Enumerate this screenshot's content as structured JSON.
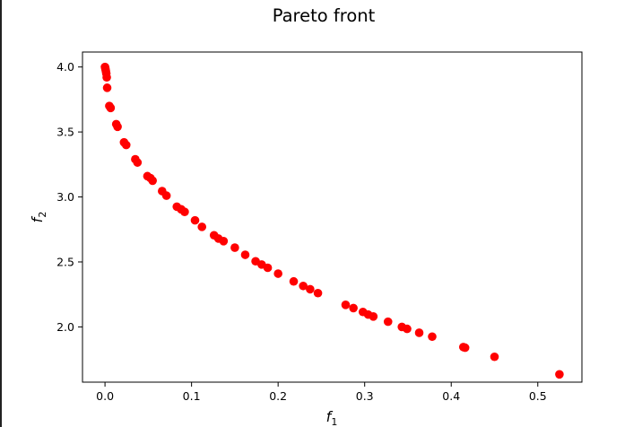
{
  "chart_data": {
    "type": "scatter",
    "title": "Pareto front",
    "xlabel": "f",
    "xlabel_sub": "1",
    "ylabel": "f",
    "ylabel_sub": "2",
    "xlim": [
      -0.026,
      0.551
    ],
    "ylim": [
      1.575,
      4.115
    ],
    "xticks": [
      0.0,
      0.1,
      0.2,
      0.3,
      0.4,
      0.5
    ],
    "xtick_labels": [
      "0.0",
      "0.1",
      "0.2",
      "0.3",
      "0.4",
      "0.5"
    ],
    "yticks": [
      2.0,
      2.5,
      3.0,
      3.5,
      4.0
    ],
    "ytick_labels": [
      "2.0",
      "2.5",
      "3.0",
      "3.5",
      "4.0"
    ],
    "grid": false,
    "marker_color": "#ff0000",
    "series": [
      {
        "x": [
          0.0,
          0.0005,
          0.001,
          0.0015,
          0.002,
          0.0025,
          0.005,
          0.0065,
          0.013,
          0.0145,
          0.022,
          0.0245,
          0.035,
          0.0375,
          0.049,
          0.0525,
          0.055,
          0.066,
          0.071,
          0.083,
          0.088,
          0.092,
          0.104,
          0.112,
          0.126,
          0.131,
          0.137,
          0.15,
          0.162,
          0.174,
          0.181,
          0.188,
          0.2,
          0.218,
          0.229,
          0.237,
          0.246,
          0.278,
          0.287,
          0.298,
          0.304,
          0.31,
          0.327,
          0.343,
          0.349,
          0.363,
          0.378,
          0.414,
          0.416,
          0.45,
          0.525
        ],
        "y": [
          4.0,
          3.985,
          3.97,
          3.95,
          3.92,
          3.84,
          3.7,
          3.685,
          3.56,
          3.54,
          3.42,
          3.4,
          3.29,
          3.265,
          3.16,
          3.145,
          3.125,
          3.045,
          3.01,
          2.925,
          2.905,
          2.885,
          2.82,
          2.77,
          2.705,
          2.68,
          2.66,
          2.61,
          2.555,
          2.505,
          2.48,
          2.455,
          2.41,
          2.35,
          2.315,
          2.29,
          2.26,
          2.17,
          2.145,
          2.115,
          2.095,
          2.08,
          2.04,
          2.0,
          1.985,
          1.955,
          1.925,
          1.845,
          1.84,
          1.77,
          1.635
        ]
      }
    ]
  }
}
